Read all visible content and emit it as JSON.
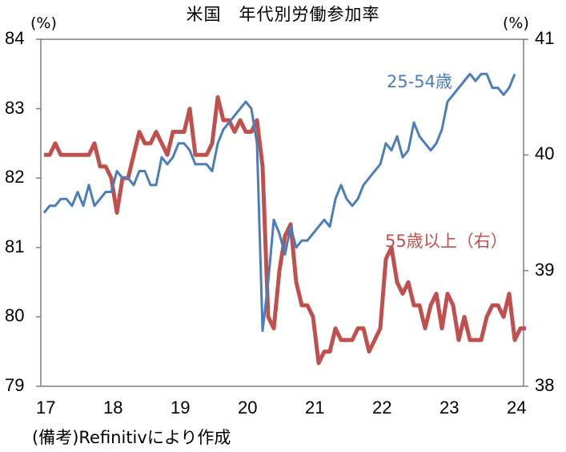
{
  "chart_data": {
    "type": "line",
    "title": "米国　年代別労働参加率",
    "xlabel": "",
    "ylabel_left": "(%)",
    "ylabel_right": "(%)",
    "x_tick_labels": [
      "17",
      "18",
      "19",
      "20",
      "21",
      "22",
      "23",
      "24"
    ],
    "y_left_ticks": [
      "84",
      "83",
      "82",
      "81",
      "80",
      "79"
    ],
    "y_right_ticks": [
      "41",
      "40",
      "39",
      "38"
    ],
    "ylim_left": [
      79,
      84
    ],
    "ylim_right": [
      38,
      41
    ],
    "x_start": "2017-01",
    "x_frequency": "monthly",
    "grid": false,
    "legend_position": "inline labels",
    "series": [
      {
        "name": "25-54歳",
        "axis": "left",
        "color": "#4a7ebb",
        "values": [
          81.5,
          81.6,
          81.6,
          81.7,
          81.7,
          81.6,
          81.8,
          81.6,
          81.9,
          81.6,
          81.7,
          81.8,
          81.8,
          82.1,
          82.0,
          82.0,
          81.9,
          82.1,
          82.1,
          81.9,
          81.9,
          82.3,
          82.2,
          82.3,
          82.5,
          82.5,
          82.4,
          82.2,
          82.2,
          82.2,
          82.1,
          82.5,
          82.7,
          82.8,
          82.9,
          83.0,
          83.1,
          83.0,
          82.5,
          79.8,
          80.5,
          81.4,
          81.2,
          80.9,
          81.3,
          81.0,
          81.1,
          81.1,
          81.2,
          81.3,
          81.4,
          81.3,
          81.7,
          81.9,
          81.7,
          81.6,
          81.7,
          81.9,
          82.0,
          82.1,
          82.2,
          82.5,
          82.4,
          82.6,
          82.3,
          82.4,
          82.8,
          82.6,
          82.5,
          82.4,
          82.5,
          82.7,
          83.1,
          83.2,
          83.3,
          83.4,
          83.5,
          83.4,
          83.5,
          83.5,
          83.3,
          83.3,
          83.2,
          83.3,
          83.5
        ]
      },
      {
        "name": "55歳以上（右）",
        "axis": "right",
        "color": "#c0504d",
        "values": [
          40.0,
          40.0,
          40.1,
          40.0,
          40.0,
          40.0,
          40.0,
          40.0,
          40.0,
          40.1,
          39.9,
          39.9,
          39.8,
          39.5,
          39.8,
          39.8,
          40.0,
          40.2,
          40.1,
          40.1,
          40.2,
          40.1,
          40.0,
          40.2,
          40.2,
          40.2,
          40.4,
          40.0,
          40.0,
          40.0,
          40.1,
          40.5,
          40.3,
          40.3,
          40.2,
          40.3,
          40.2,
          40.2,
          40.3,
          39.9,
          38.6,
          38.5,
          39.0,
          39.3,
          39.4,
          38.9,
          38.7,
          38.7,
          38.6,
          38.2,
          38.3,
          38.3,
          38.5,
          38.4,
          38.4,
          38.4,
          38.5,
          38.5,
          38.3,
          38.4,
          38.5,
          39.1,
          39.2,
          38.9,
          38.8,
          38.9,
          38.7,
          38.7,
          38.5,
          38.7,
          38.8,
          38.5,
          38.8,
          38.7,
          38.4,
          38.6,
          38.4,
          38.4,
          38.4,
          38.6,
          38.7,
          38.7,
          38.6,
          38.8,
          38.4,
          38.5,
          38.5
        ]
      }
    ]
  },
  "labels": {
    "title": "米国　年代別労働参加率",
    "unit_left": "(%)",
    "unit_right": "(%)",
    "series_blue": "25-54歳",
    "series_red": "55歳以上（右）",
    "source": "(備考)Refinitivにより作成"
  }
}
